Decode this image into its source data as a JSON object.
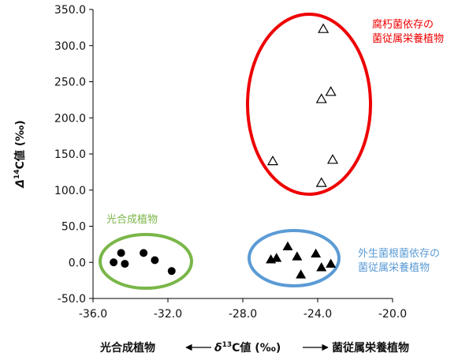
{
  "chart_data": {
    "type": "scatter",
    "xlabel_left": "光合成植物",
    "xlabel_center": "δ13C値 (‰)",
    "xlabel_center_delta": "δ",
    "xlabel_center_sup": "13",
    "xlabel_center_rest": "C値 (‰)",
    "xlabel_right": "菌従属栄養植物",
    "ylabel": "Δ14C値 (‰)",
    "ylabel_delta": "Δ",
    "ylabel_sup": "14",
    "ylabel_rest": "C値 (‰)",
    "xlim": [
      -36.0,
      -20.0
    ],
    "ylim": [
      -50.0,
      350.0
    ],
    "xticks": [
      -36.0,
      -32.0,
      -28.0,
      -24.0,
      -20.0
    ],
    "xtick_labels": [
      "-36.0",
      "-32.0",
      "-28.0",
      "-24.0",
      "-20.0"
    ],
    "yticks": [
      -50.0,
      0.0,
      50.0,
      100.0,
      150.0,
      200.0,
      250.0,
      300.0,
      350.0
    ],
    "ytick_labels": [
      "-50.0",
      "0.0",
      "50.0",
      "100.0",
      "150.0",
      "200.0",
      "250.0",
      "300.0",
      "350.0"
    ],
    "grid": false,
    "series": [
      {
        "name": "光合成植物",
        "marker": "filled-circle",
        "color": "#000000",
        "points": [
          [
            -34.9,
            0.0
          ],
          [
            -34.5,
            13.0
          ],
          [
            -34.3,
            -2.0
          ],
          [
            -33.3,
            13.0
          ],
          [
            -32.7,
            3.0
          ],
          [
            -31.8,
            -12.0
          ]
        ]
      },
      {
        "name": "外生菌根菌依存の菌従属栄養植物",
        "marker": "filled-triangle",
        "color": "#000000",
        "points": [
          [
            -26.5,
            4.0
          ],
          [
            -26.2,
            6.0
          ],
          [
            -25.6,
            22.0
          ],
          [
            -25.1,
            8.0
          ],
          [
            -24.9,
            -17.0
          ],
          [
            -24.1,
            12.0
          ],
          [
            -23.8,
            -7.0
          ],
          [
            -23.3,
            -2.0
          ]
        ]
      },
      {
        "name": "腐朽菌依存の菌従属栄養植物",
        "marker": "open-triangle",
        "color": "#000000",
        "points": [
          [
            -23.7,
            323.0
          ],
          [
            -23.3,
            236.0
          ],
          [
            -23.8,
            226.0
          ],
          [
            -26.4,
            140.0
          ],
          [
            -23.2,
            142.0
          ],
          [
            -23.8,
            110.0
          ]
        ]
      }
    ],
    "groups": [
      {
        "label_lines": [
          "腐朽菌依存の",
          "菌従属栄養植物"
        ],
        "color": "#ee0000"
      },
      {
        "label_lines": [
          "光合成植物"
        ],
        "color": "#7ab648"
      },
      {
        "label_lines": [
          "外生菌根菌依存の",
          "菌従属栄養植物"
        ],
        "color": "#5b9bd5"
      }
    ]
  }
}
